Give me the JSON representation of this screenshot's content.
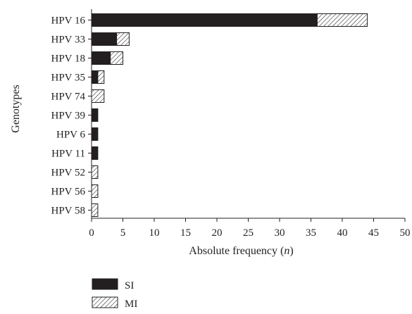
{
  "chart_data": {
    "type": "bar",
    "orientation": "horizontal",
    "stacked": true,
    "categories": [
      "HPV 16",
      "HPV 33",
      "HPV 18",
      "HPV 35",
      "HPV 74",
      "HPV 39",
      "HPV 6",
      "HPV 11",
      "HPV 52",
      "HPV 56",
      "HPV 58"
    ],
    "series": [
      {
        "name": "SI",
        "values": [
          36,
          4,
          3,
          1,
          0,
          1,
          1,
          1,
          0,
          0,
          0
        ],
        "fill": "#231f20",
        "pattern": "solid"
      },
      {
        "name": "MI",
        "values": [
          8,
          2,
          2,
          1,
          2,
          0,
          0,
          0,
          1,
          1,
          1
        ],
        "fill": "#ffffff",
        "pattern": "hatched"
      }
    ],
    "xlabel": {
      "text": "Absolute frequency (",
      "italic": "n",
      "suffix": ")"
    },
    "ylabel": "Genotypes",
    "xlim": [
      0,
      50
    ],
    "xticks": [
      0,
      5,
      10,
      15,
      20,
      25,
      30,
      35,
      40,
      45,
      50
    ],
    "grid": false,
    "legend": {
      "position": "bottom-left",
      "entries": [
        "SI",
        "MI"
      ]
    },
    "colors": {
      "ink": "#231f20",
      "background": "#ffffff"
    }
  }
}
